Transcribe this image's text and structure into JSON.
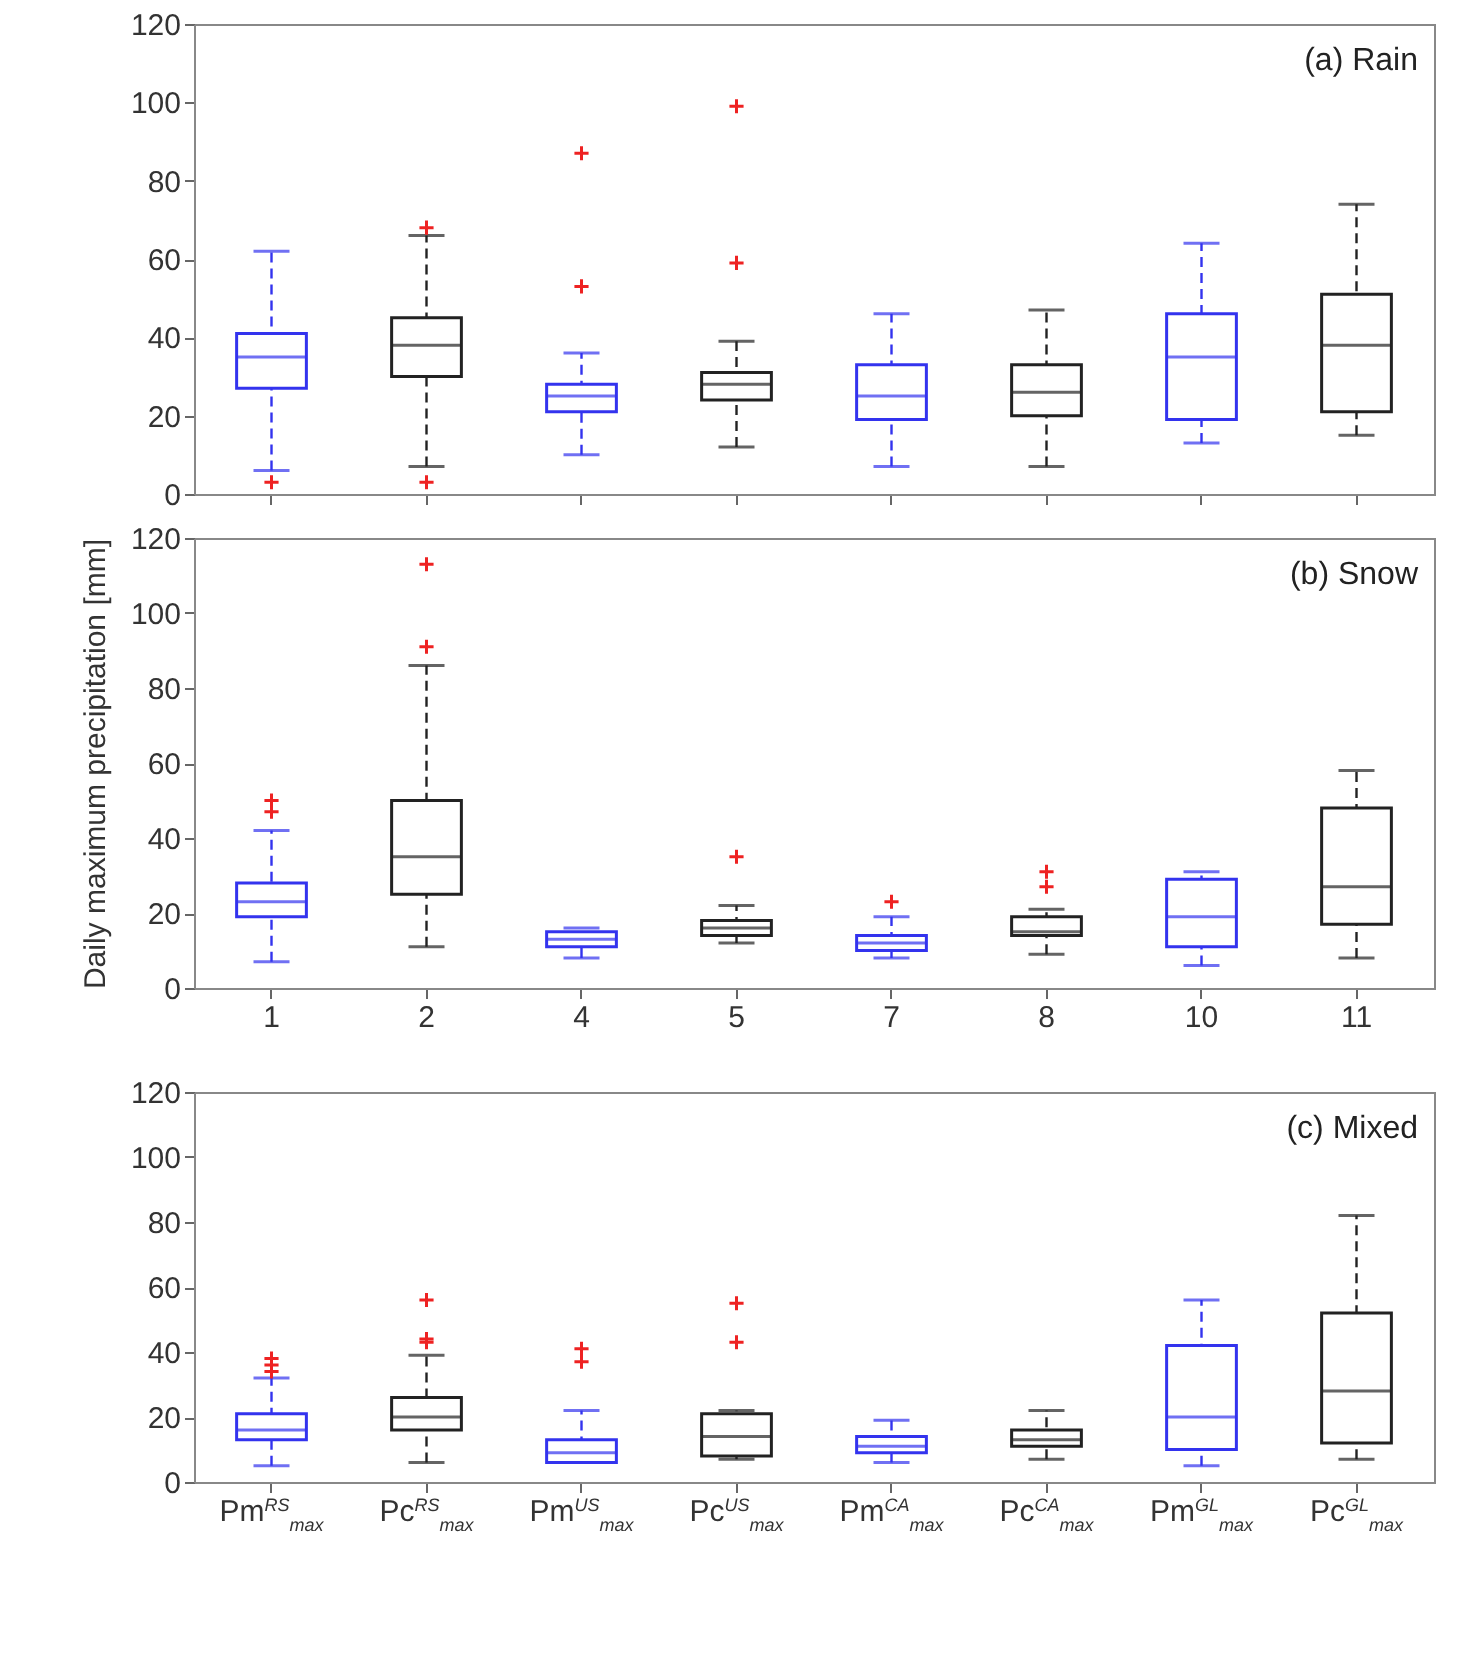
{
  "chart_data": [
    {
      "type": "box",
      "annotations": [
        "(a) Rain"
      ],
      "categories": [
        "1",
        "2",
        "4",
        "5",
        "7",
        "8",
        "10",
        "11"
      ],
      "tick_labels": "y",
      "ylim": [
        0,
        120
      ],
      "yticks": [
        0,
        20,
        40,
        60,
        80,
        100,
        120
      ],
      "grid": false,
      "line_style": "dashed",
      "marker": "cross",
      "colors": [
        "#3333ee",
        "#222222",
        "#3333ee",
        "#222222",
        "#3333ee",
        "#222222",
        "#3333ee",
        "#222222"
      ],
      "boxes": [
        {
          "low": 6,
          "q1": 27,
          "median": 35,
          "q3": 41,
          "high": 62,
          "outliers": [
            3
          ]
        },
        {
          "low": 7,
          "q1": 30,
          "median": 38,
          "q3": 45,
          "high": 66,
          "outliers": [
            68,
            3
          ]
        },
        {
          "low": 10,
          "q1": 21,
          "median": 25,
          "q3": 28,
          "high": 36,
          "outliers": [
            87,
            53
          ]
        },
        {
          "low": 12,
          "q1": 24,
          "median": 28,
          "q3": 31,
          "high": 39,
          "outliers": [
            99,
            59
          ]
        },
        {
          "low": 7,
          "q1": 19,
          "median": 25,
          "q3": 33,
          "high": 46
        },
        {
          "low": 7,
          "q1": 20,
          "median": 26,
          "q3": 33,
          "high": 47
        },
        {
          "low": 13,
          "q1": 19,
          "median": 35,
          "q3": 46,
          "high": 64
        },
        {
          "low": 15,
          "q1": 21,
          "median": 38,
          "q3": 51,
          "high": 74
        }
      ]
    },
    {
      "type": "box",
      "annotations": [
        "(b) Snow"
      ],
      "ylabel": "Daily maximum precipitation [mm]",
      "categories": [
        "1",
        "2",
        "4",
        "5",
        "7",
        "8",
        "10",
        "11"
      ],
      "ylim": [
        0,
        120
      ],
      "yticks": [
        0,
        20,
        40,
        60,
        80,
        100,
        120
      ],
      "grid": false,
      "line_style": "dashed",
      "marker": "cross",
      "colors": [
        "#3333ee",
        "#222222",
        "#3333ee",
        "#222222",
        "#3333ee",
        "#222222",
        "#3333ee",
        "#222222"
      ],
      "boxes": [
        {
          "low": 7,
          "q1": 19,
          "median": 23,
          "q3": 28,
          "high": 42,
          "outliers": [
            50,
            47
          ]
        },
        {
          "low": 11,
          "q1": 25,
          "median": 35,
          "q3": 50,
          "high": 86,
          "outliers": [
            113,
            91
          ]
        },
        {
          "low": 8,
          "q1": 11,
          "median": 13,
          "q3": 15,
          "high": 16
        },
        {
          "low": 12,
          "q1": 14,
          "median": 16,
          "q3": 18,
          "high": 22,
          "outliers": [
            35
          ]
        },
        {
          "low": 8,
          "q1": 10,
          "median": 12,
          "q3": 14,
          "high": 19,
          "outliers": [
            23
          ]
        },
        {
          "low": 9,
          "q1": 14,
          "median": 15,
          "q3": 19,
          "high": 21,
          "outliers": [
            31,
            27
          ]
        },
        {
          "low": 6,
          "q1": 11,
          "median": 19,
          "q3": 29,
          "high": 31
        },
        {
          "low": 8,
          "q1": 17,
          "median": 27,
          "q3": 48,
          "high": 58
        }
      ]
    },
    {
      "type": "box",
      "annotations": [
        "(c) Mixed"
      ],
      "categories": [
        "Pm$^{RS}$$_{max}$",
        "Pc$^{RS}$$_{max}$",
        "Pm$^{US}$$_{max}$",
        "Pc$^{US}$$_{max}$",
        "Pm$^{CA}$$_{max}$",
        "Pc$^{CA}$$_{max}$",
        "Pm$^{GL}$$_{max}$",
        "Pc$^{GL}$$_{max}$"
      ],
      "ylim": [
        0,
        120
      ],
      "yticks": [
        0,
        20,
        40,
        60,
        80,
        100,
        120
      ],
      "grid": false,
      "line_style": "dashed",
      "marker": "cross",
      "colors": [
        "#3333ee",
        "#222222",
        "#3333ee",
        "#222222",
        "#3333ee",
        "#222222",
        "#3333ee",
        "#222222"
      ],
      "boxes": [
        {
          "low": 5,
          "q1": 13,
          "median": 16,
          "q3": 21,
          "high": 32,
          "outliers": [
            38,
            36,
            34
          ]
        },
        {
          "low": 6,
          "q1": 16,
          "median": 20,
          "q3": 26,
          "high": 39,
          "outliers": [
            56,
            44,
            43
          ]
        },
        {
          "low": 6,
          "q1": 6,
          "median": 9,
          "q3": 13,
          "high": 22,
          "outliers": [
            41,
            37
          ]
        },
        {
          "low": 7,
          "q1": 8,
          "median": 14,
          "q3": 21,
          "high": 22,
          "outliers": [
            55,
            43
          ]
        },
        {
          "low": 6,
          "q1": 9,
          "median": 11,
          "q3": 14,
          "high": 19
        },
        {
          "low": 7,
          "q1": 11,
          "median": 13,
          "q3": 16,
          "high": 22
        },
        {
          "low": 5,
          "q1": 10,
          "median": 20,
          "q3": 42,
          "high": 56
        },
        {
          "low": 7,
          "q1": 12,
          "median": 28,
          "q3": 52,
          "high": 82
        }
      ]
    }
  ]
}
